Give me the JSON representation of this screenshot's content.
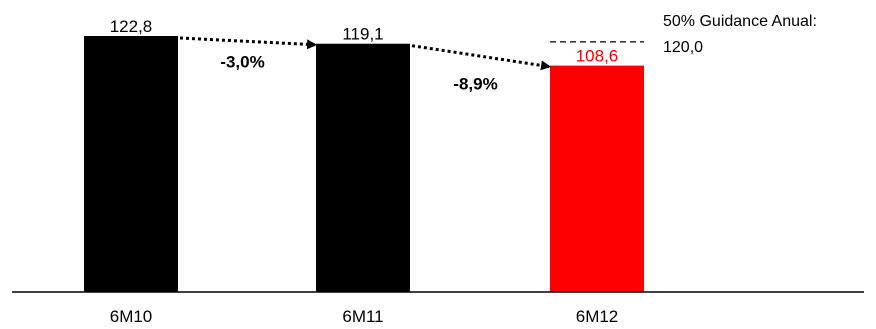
{
  "chart_data": {
    "type": "bar",
    "categories": [
      "6M10",
      "6M11",
      "6M12"
    ],
    "values": [
      122.8,
      119.1,
      108.6
    ],
    "value_labels": [
      "122,8",
      "119,1",
      "108,6"
    ],
    "bar_colors": [
      "#000000",
      "#000000",
      "#ff0000"
    ],
    "value_label_colors": [
      "#000000",
      "#000000",
      "#ff0000"
    ],
    "changes": [
      {
        "from": 0,
        "to": 1,
        "label": "-3,0%"
      },
      {
        "from": 1,
        "to": 2,
        "label": "-8,9%"
      }
    ],
    "guidance": {
      "label_line1": "50% Guidance Anual:",
      "label_line2": "120,0",
      "value": 120.0,
      "applies_to": 2
    },
    "ylim": [
      0,
      130
    ],
    "grid": false,
    "title": "",
    "xlabel": "",
    "ylabel": ""
  }
}
